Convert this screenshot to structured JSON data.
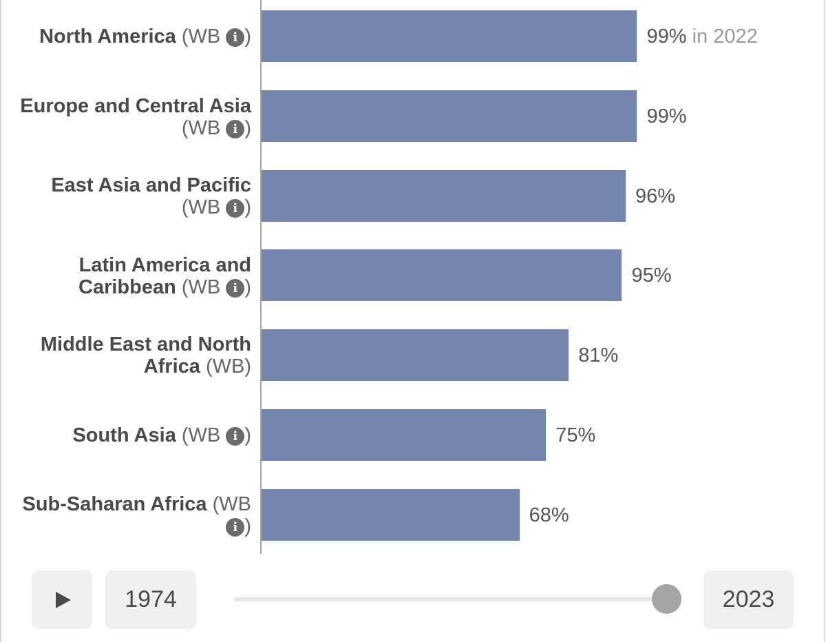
{
  "chart_data": {
    "type": "bar",
    "orientation": "horizontal",
    "bar_color": "#7486ad",
    "xlim": [
      0,
      100
    ],
    "categories": [
      {
        "name": "North America",
        "suffix": "(WB",
        "info_icon": true,
        "close": ")"
      },
      {
        "name": "Europe and Central Asia",
        "suffix": "(WB",
        "info_icon": true,
        "close": ")"
      },
      {
        "name": "East Asia and Pacific",
        "suffix": "(WB",
        "info_icon": true,
        "close": ")"
      },
      {
        "name": "Latin America and Caribbean",
        "suffix": "(WB",
        "info_icon": true,
        "close": ")"
      },
      {
        "name": "Middle East and North Africa",
        "suffix": "(WB)",
        "info_icon": false,
        "close": ""
      },
      {
        "name": "South Asia",
        "suffix": "(WB",
        "info_icon": true,
        "close": ")"
      },
      {
        "name": "Sub-Saharan Africa",
        "suffix": "(WB",
        "info_icon": true,
        "close": ")"
      }
    ],
    "values": [
      99,
      99,
      96,
      95,
      81,
      75,
      68
    ],
    "value_labels": [
      "99%",
      "99%",
      "96%",
      "95%",
      "81%",
      "75%",
      "68%"
    ],
    "value_notes": [
      " in 2022",
      "",
      "",
      "",
      "",
      "",
      ""
    ]
  },
  "timeline": {
    "play_icon": "play-icon",
    "start_year": "1974",
    "end_year": "2023",
    "slider_position": 1.0
  }
}
